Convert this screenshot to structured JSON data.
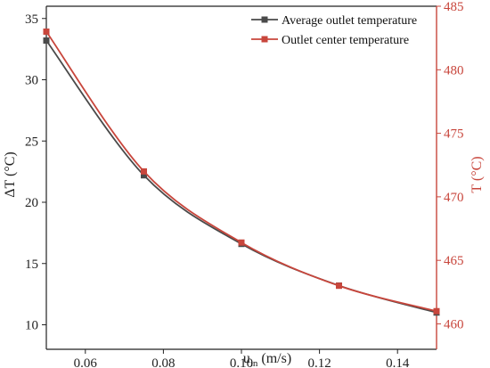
{
  "chart_data": {
    "type": "line",
    "title": "",
    "xlabel": "u",
    "xlabel_sub": "in",
    "xlabel_unit": " (m/s)",
    "ylabel_left": "ΔT (°C)",
    "ylabel_right": "T (°C)",
    "xlim": [
      0.05,
      0.15
    ],
    "ylim_left": [
      8,
      36
    ],
    "ylim_right": [
      458,
      485
    ],
    "x_ticks": [
      0.06,
      0.08,
      0.1,
      0.12,
      0.14
    ],
    "x_tick_labels": [
      "0.06",
      "0.08",
      "0.10",
      "0.12",
      "0.14"
    ],
    "y_left_ticks": [
      10,
      15,
      20,
      25,
      30,
      35
    ],
    "y_left_tick_labels": [
      "10",
      "15",
      "20",
      "25",
      "30",
      "35"
    ],
    "y_right_ticks": [
      460,
      465,
      470,
      475,
      480,
      485
    ],
    "y_right_tick_labels": [
      "460",
      "465",
      "470",
      "475",
      "480",
      "485"
    ],
    "legend_position": "top-right",
    "grid": false,
    "series": [
      {
        "name": "Average outlet temperature",
        "axis": "left",
        "color": "#4a4a4a",
        "x": [
          0.05,
          0.075,
          0.1,
          0.125,
          0.15
        ],
        "values": [
          33.2,
          22.2,
          16.6,
          13.2,
          11.0
        ]
      },
      {
        "name": "Outlet center temperature",
        "axis": "right",
        "color": "#c8463c",
        "x": [
          0.05,
          0.075,
          0.1,
          0.125,
          0.15
        ],
        "values": [
          483.0,
          472.0,
          466.4,
          463.0,
          461.0
        ]
      }
    ],
    "axis_colors": {
      "left": "#222222",
      "right": "#c8463c"
    }
  }
}
